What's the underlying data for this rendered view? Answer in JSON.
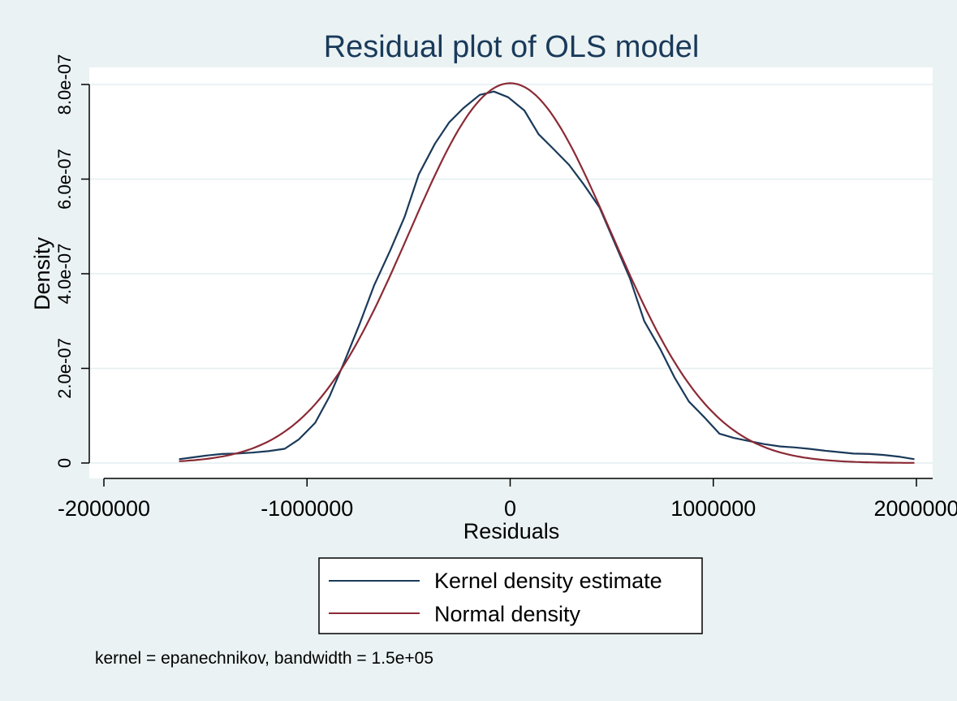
{
  "chart_data": {
    "type": "line",
    "title": "Residual plot of OLS model",
    "xlabel": "Residuals",
    "ylabel": "Density",
    "xlim": [
      -2000000,
      2000000
    ],
    "ylim": [
      0,
      8e-07
    ],
    "x_ticks": [
      -2000000,
      -1000000,
      0,
      1000000,
      2000000
    ],
    "x_tick_labels": [
      "-2000000",
      "-1000000",
      "0",
      "1000000",
      "2000000"
    ],
    "y_ticks": [
      0,
      2e-07,
      4e-07,
      6e-07,
      8e-07
    ],
    "y_tick_labels": [
      "0",
      "2.0e-07",
      "4.0e-07",
      "6.0e-07",
      "8.0e-07"
    ],
    "grid": true,
    "legend_position": "bottom",
    "note": "kernel = epanechnikov, bandwidth =  1.5e+05",
    "series": [
      {
        "name": "Kernel density estimate",
        "color": "#1a3a5a",
        "x": [
          -1630000,
          -1560000,
          -1490000,
          -1420000,
          -1350000,
          -1270000,
          -1190000,
          -1110000,
          -1040000,
          -960000,
          -890000,
          -820000,
          -740000,
          -670000,
          -590000,
          -520000,
          -450000,
          -370000,
          -300000,
          -230000,
          -150000,
          -80000,
          -10000,
          70000,
          140000,
          210000,
          290000,
          360000,
          440000,
          510000,
          590000,
          660000,
          740000,
          810000,
          880000,
          960000,
          1030000,
          1100000,
          1180000,
          1250000,
          1330000,
          1400000,
          1470000,
          1550000,
          1620000,
          1690000,
          1770000,
          1840000,
          1920000,
          1990000
        ],
        "y": [
          8e-09,
          1.2e-08,
          1.6e-08,
          1.9e-08,
          2e-08,
          2.2e-08,
          2.5e-08,
          3e-08,
          5e-08,
          8.5e-08,
          1.4e-07,
          2.1e-07,
          2.95e-07,
          3.75e-07,
          4.5e-07,
          5.2e-07,
          6.1e-07,
          6.75e-07,
          7.2e-07,
          7.5e-07,
          7.78e-07,
          7.85e-07,
          7.73e-07,
          7.45e-07,
          6.95e-07,
          6.65e-07,
          6.3e-07,
          5.9e-07,
          5.4e-07,
          4.7e-07,
          3.9e-07,
          3e-07,
          2.4e-07,
          1.8e-07,
          1.3e-07,
          9.5e-08,
          6.2e-08,
          5.3e-08,
          4.6e-08,
          4e-08,
          3.5e-08,
          3.3e-08,
          3e-08,
          2.6e-08,
          2.3e-08,
          2e-08,
          1.9e-08,
          1.7e-08,
          1.3e-08,
          8e-09
        ]
      },
      {
        "name": "Normal density",
        "color": "#8b2a35",
        "mean": 0,
        "sd": 497000,
        "x_range": [
          -1630000,
          1990000
        ]
      }
    ]
  }
}
